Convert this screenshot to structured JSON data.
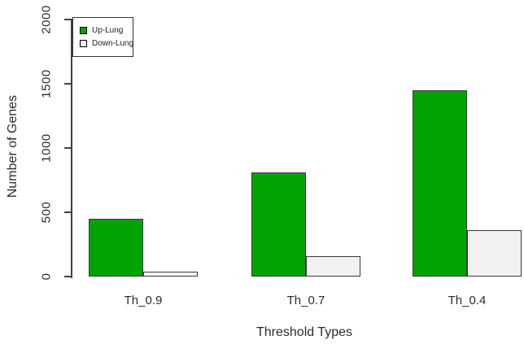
{
  "figure": {
    "background": "#ffffff",
    "text_color": "#2b2b2b",
    "axis_color": "#404040",
    "bar_border_color": "#3a3a3a"
  },
  "chart_data": {
    "type": "bar",
    "title": "",
    "categories": [
      "Th_0.9",
      "Th_0.7",
      "Th_0.4"
    ],
    "series": [
      {
        "name": "Up-Lung",
        "color": "#00a400",
        "values": [
          450,
          810,
          1450
        ]
      },
      {
        "name": "Down-Lung",
        "color": "#f2f2f2",
        "values": [
          35,
          160,
          360
        ]
      }
    ],
    "xlabel": "Threshold Types",
    "ylabel": "Number of Genes",
    "ylim": [
      0,
      2000
    ],
    "yticks": [
      0,
      500,
      1000,
      1500,
      2000
    ],
    "legend_position": "top-left",
    "grid": false
  }
}
